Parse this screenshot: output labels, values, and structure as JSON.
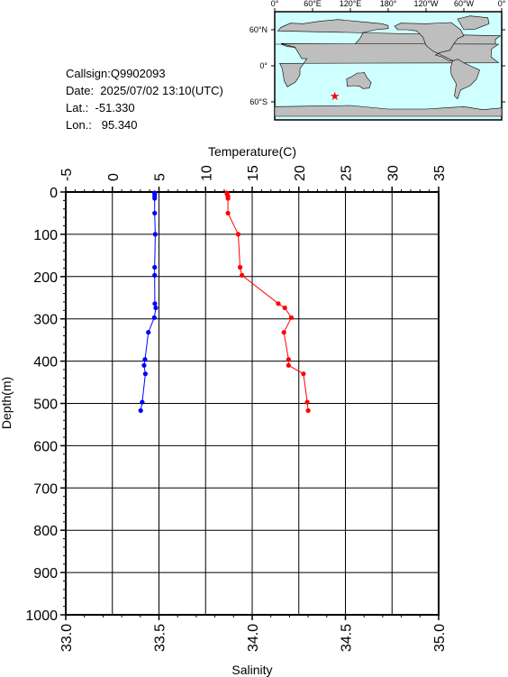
{
  "station": {
    "callsign": "Callsign:Q9902093",
    "date": "Date:  2025/07/02 13:10(UTC)",
    "lat": "Lat.:  -51.330",
    "lon": "Lon.:   95.340"
  },
  "map": {
    "lon_labels": [
      "0°",
      "60°E",
      "120°E",
      "180°",
      "120°W",
      "60°W",
      "0°"
    ],
    "lat_labels": [
      "60°N",
      "0°",
      "60°S"
    ],
    "marker": {
      "lat": -51.33,
      "lon": 95.34
    },
    "colors": {
      "ocean": "#cfffff",
      "land": "#bebebe",
      "marker": "#ff0000"
    }
  },
  "chart_data": {
    "type": "line",
    "title": "",
    "top_axis": {
      "label": "Temperature(C)",
      "range": [
        -5,
        35
      ],
      "ticks": [
        "-5",
        "0",
        "5",
        "10",
        "15",
        "20",
        "25",
        "30",
        "35"
      ]
    },
    "bottom_axis": {
      "label": "Salinity",
      "range": [
        33.0,
        35.0
      ],
      "ticks": [
        "33.0",
        "33.5",
        "34.0",
        "34.5",
        "35.0"
      ]
    },
    "y_axis": {
      "label": "Depth(m)",
      "range": [
        0,
        1000
      ],
      "inverted": true,
      "ticks": [
        "0",
        "100",
        "200",
        "300",
        "400",
        "500",
        "600",
        "700",
        "800",
        "900",
        "1000"
      ]
    },
    "grid": true,
    "series": [
      {
        "axis": "temperature",
        "color": "#ff0000",
        "points": [
          [
            12.3,
            2
          ],
          [
            12.3,
            5
          ],
          [
            12.4,
            10
          ],
          [
            12.4,
            15
          ],
          [
            12.4,
            50
          ],
          [
            13.5,
            100
          ],
          [
            13.7,
            178
          ],
          [
            13.9,
            197
          ],
          [
            17.8,
            264
          ],
          [
            18.5,
            274
          ],
          [
            19.2,
            297
          ],
          [
            18.4,
            332
          ],
          [
            18.9,
            396
          ],
          [
            18.9,
            410
          ],
          [
            20.5,
            430
          ],
          [
            20.9,
            497
          ],
          [
            21.0,
            517
          ]
        ]
      },
      {
        "axis": "salinity",
        "color": "#0000ff",
        "points": [
          [
            33.477,
            2
          ],
          [
            33.477,
            5
          ],
          [
            33.477,
            10
          ],
          [
            33.477,
            15
          ],
          [
            33.477,
            50
          ],
          [
            33.48,
            100
          ],
          [
            33.477,
            178
          ],
          [
            33.477,
            197
          ],
          [
            33.478,
            264
          ],
          [
            33.483,
            274
          ],
          [
            33.475,
            297
          ],
          [
            33.443,
            332
          ],
          [
            33.425,
            396
          ],
          [
            33.42,
            410
          ],
          [
            33.427,
            430
          ],
          [
            33.41,
            497
          ],
          [
            33.402,
            517
          ]
        ]
      }
    ]
  }
}
